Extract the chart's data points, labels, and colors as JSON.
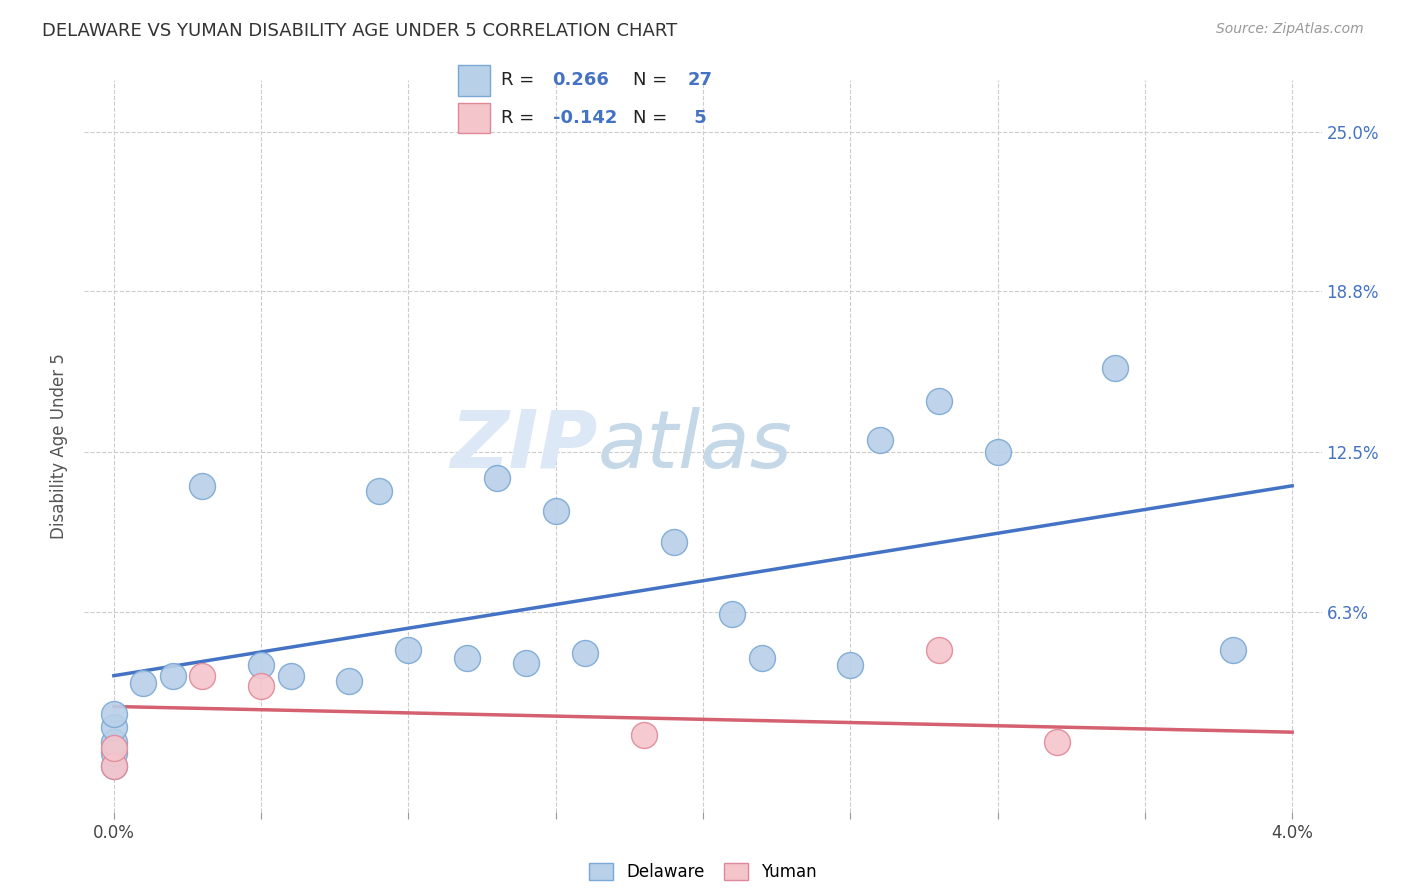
{
  "title": "DELAWARE VS YUMAN DISABILITY AGE UNDER 5 CORRELATION CHART",
  "source": "Source: ZipAtlas.com",
  "ylabel": "Disability Age Under 5",
  "yvalues": [
    25.0,
    18.8,
    12.5,
    6.3
  ],
  "delaware_color": "#b8d0e8",
  "yuman_color": "#f5c5cc",
  "delaware_edge_color": "#7aa8d4",
  "yuman_edge_color": "#e08898",
  "delaware_line_color": "#4472c4",
  "yuman_line_color": "#d46070",
  "delaware_points_x": [
    0.0,
    0.0,
    0.0,
    0.0,
    0.0,
    0.001,
    0.002,
    0.003,
    0.005,
    0.006,
    0.008,
    0.009,
    0.01,
    0.012,
    0.013,
    0.014,
    0.015,
    0.016,
    0.019,
    0.021,
    0.022,
    0.025,
    0.026,
    0.028,
    0.03,
    0.034,
    0.038
  ],
  "delaware_points_y": [
    0.3,
    0.8,
    1.2,
    1.8,
    2.3,
    3.5,
    3.8,
    11.2,
    4.2,
    3.8,
    3.6,
    11.0,
    4.8,
    4.5,
    11.5,
    4.3,
    10.2,
    4.7,
    9.0,
    6.2,
    4.5,
    4.2,
    13.0,
    14.5,
    12.5,
    15.8,
    4.8
  ],
  "yuman_points_x": [
    0.0,
    0.0,
    0.003,
    0.005,
    0.018,
    0.028,
    0.032
  ],
  "yuman_points_y": [
    0.3,
    1.0,
    3.8,
    3.4,
    1.5,
    4.8,
    1.2
  ],
  "delaware_line_x": [
    0.0,
    0.04
  ],
  "delaware_line_y": [
    3.8,
    11.2
  ],
  "yuman_line_x": [
    0.0,
    0.04
  ],
  "yuman_line_y": [
    2.6,
    1.6
  ],
  "xmin": -0.001,
  "xmax": 0.041,
  "ymin": -1.5,
  "ymax": 27.0,
  "xtick_vals": [
    0.0,
    0.005,
    0.01,
    0.015,
    0.02,
    0.025,
    0.03,
    0.035,
    0.04
  ],
  "watermark_zip": "ZIP",
  "watermark_atlas": "atlas"
}
